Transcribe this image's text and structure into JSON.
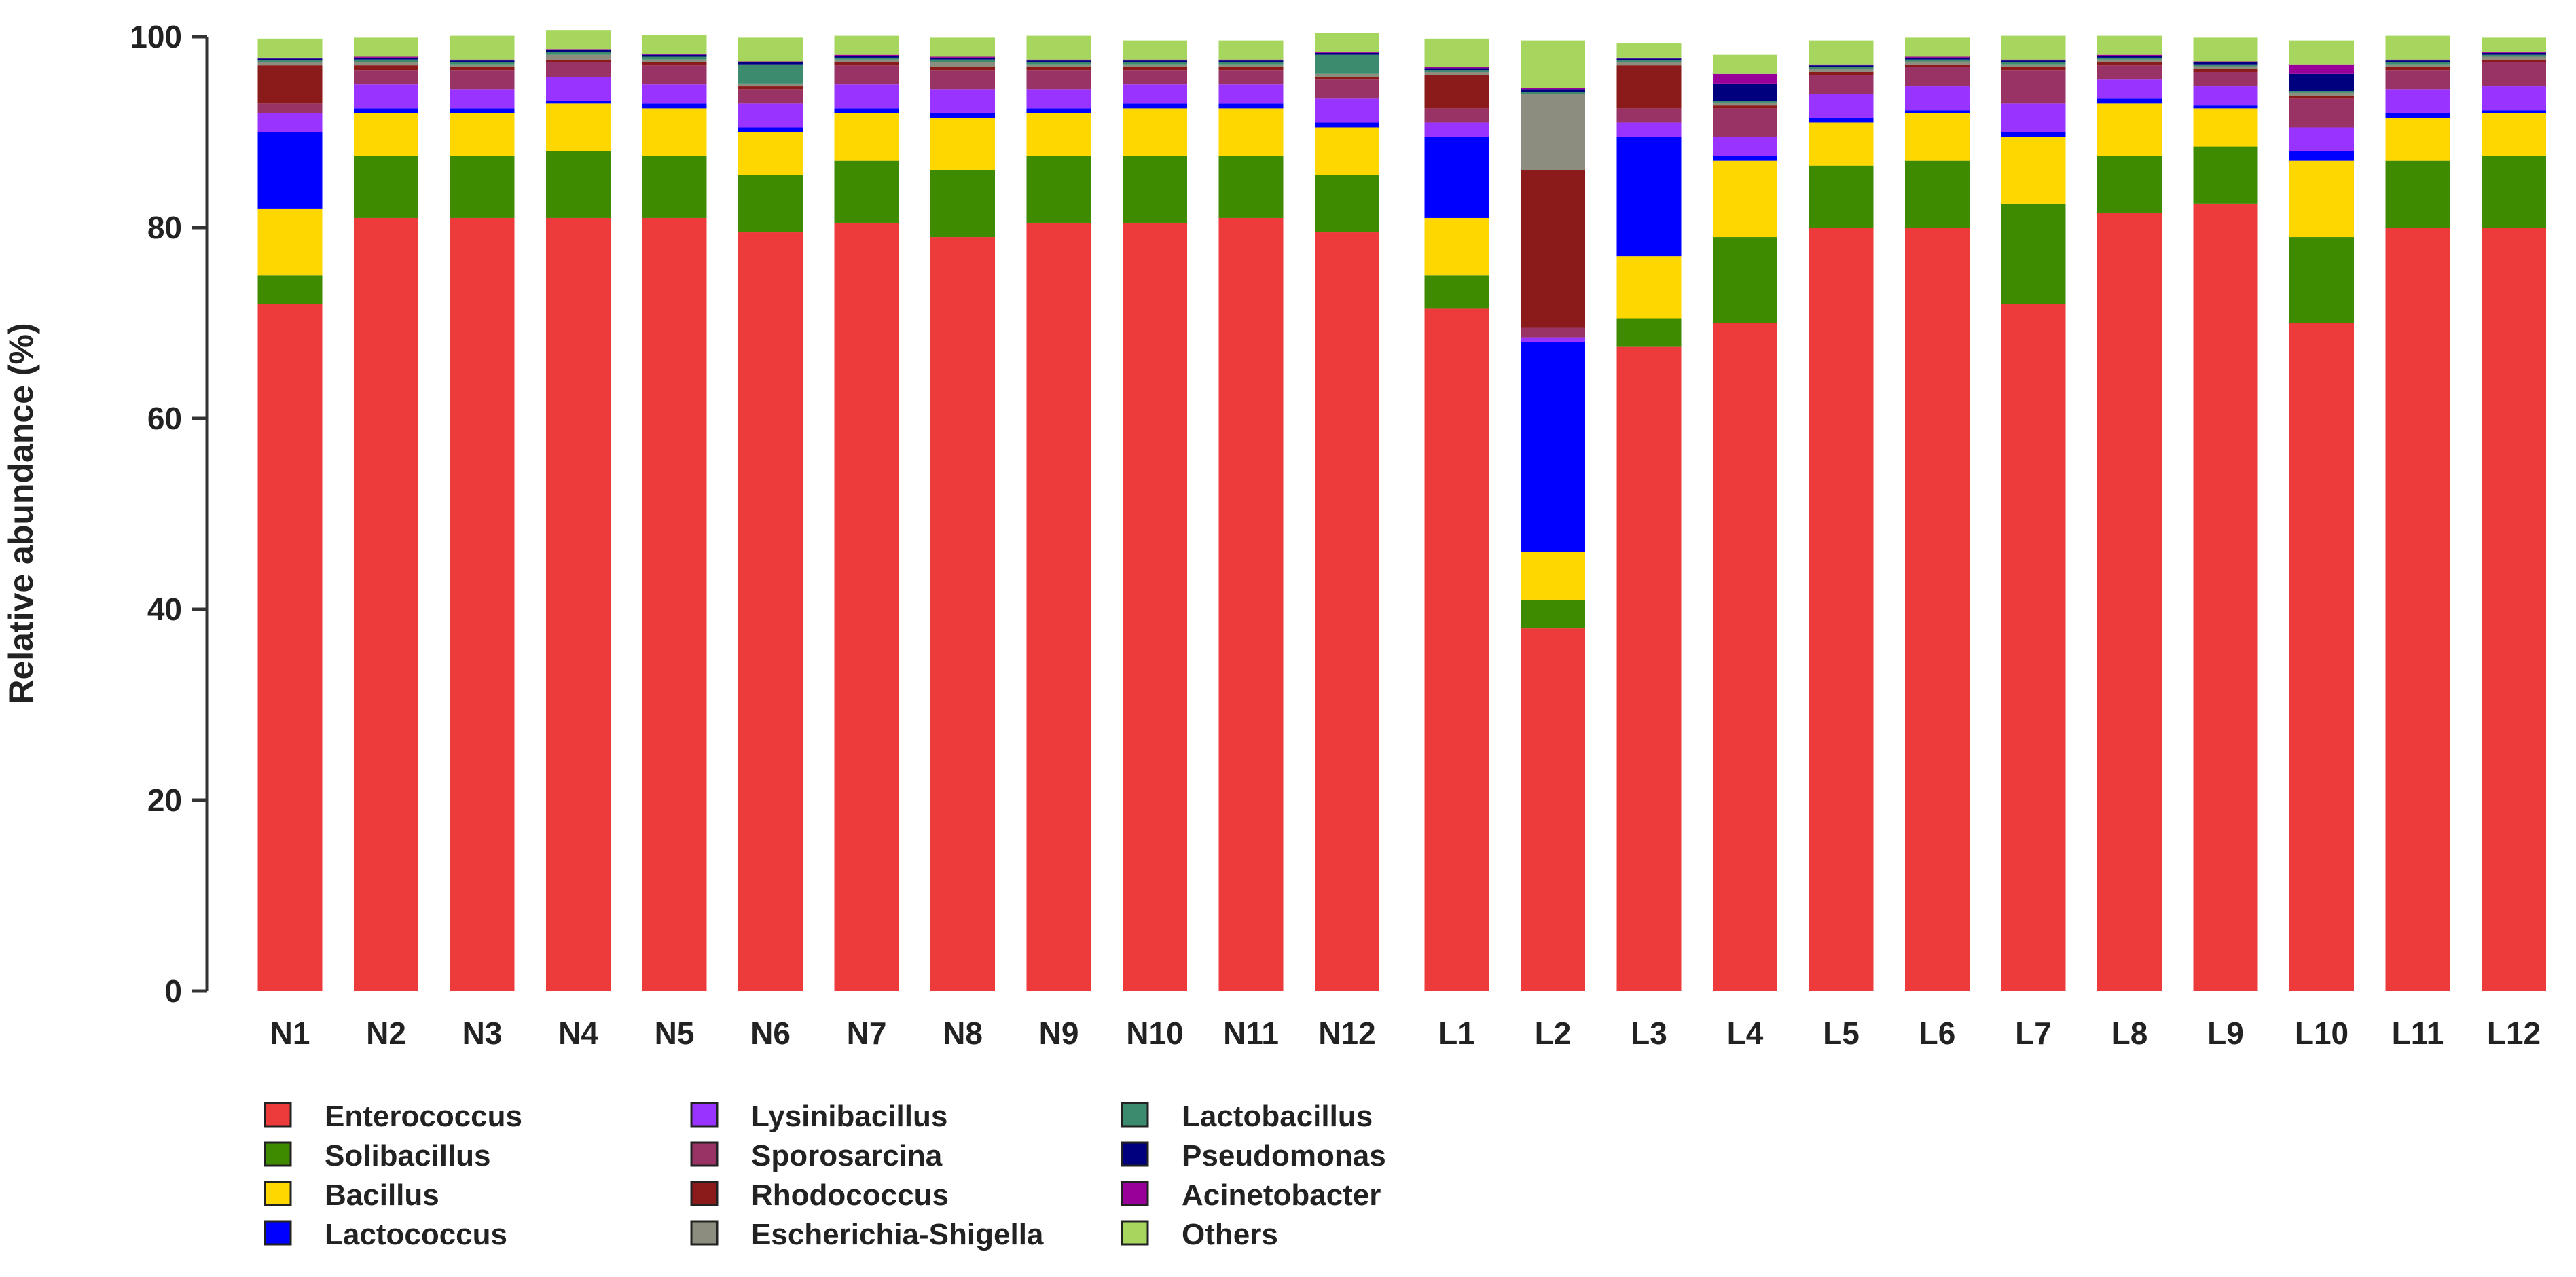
{
  "chart_data": {
    "type": "bar",
    "stacked": true,
    "title": "",
    "xlabel": "",
    "ylabel": "Relative abundance (%)",
    "ylim": [
      0,
      100
    ],
    "yticks": [
      0,
      20,
      40,
      60,
      80,
      100
    ],
    "grid": false,
    "legend_position": "bottom-left",
    "categories": [
      "N1",
      "N2",
      "N3",
      "N4",
      "N5",
      "N6",
      "N7",
      "N8",
      "N9",
      "N10",
      "N11",
      "N12",
      "L1",
      "L2",
      "L3",
      "L4",
      "L5",
      "L6",
      "L7",
      "L8",
      "L9",
      "L10",
      "L11",
      "L12"
    ],
    "series": [
      {
        "name": "Enterococcus",
        "color": "#ED3B3B",
        "values": [
          72.0,
          81.0,
          81.0,
          81.0,
          81.0,
          79.5,
          80.5,
          79.0,
          80.5,
          80.5,
          81.0,
          79.5,
          71.5,
          38.0,
          67.5,
          70.0,
          80.0,
          80.0,
          72.0,
          81.5,
          82.5,
          70.0,
          80.0,
          80.0
        ]
      },
      {
        "name": "Solibacillus",
        "color": "#3F8B00",
        "values": [
          3.0,
          6.5,
          6.5,
          7.0,
          6.5,
          6.0,
          6.5,
          7.0,
          7.0,
          7.0,
          6.5,
          6.0,
          3.5,
          3.0,
          3.0,
          9.0,
          6.5,
          7.0,
          10.5,
          6.0,
          6.0,
          9.0,
          7.0,
          7.5
        ]
      },
      {
        "name": "Bacillus",
        "color": "#FFD700",
        "values": [
          7.0,
          4.5,
          4.5,
          5.0,
          5.0,
          4.5,
          5.0,
          5.5,
          4.5,
          5.0,
          5.0,
          5.0,
          6.0,
          5.0,
          6.5,
          8.0,
          4.5,
          5.0,
          7.0,
          5.5,
          4.0,
          8.0,
          4.5,
          4.5
        ]
      },
      {
        "name": "Lactococcus",
        "color": "#0000FF",
        "values": [
          8.0,
          0.5,
          0.5,
          0.3,
          0.5,
          0.5,
          0.5,
          0.5,
          0.5,
          0.5,
          0.5,
          0.5,
          8.5,
          22.0,
          12.5,
          0.5,
          0.5,
          0.3,
          0.5,
          0.5,
          0.3,
          1.0,
          0.5,
          0.3
        ]
      },
      {
        "name": "Lysinibacillus",
        "color": "#9933FF",
        "values": [
          2.0,
          2.5,
          2.0,
          2.5,
          2.0,
          2.5,
          2.5,
          2.5,
          2.0,
          2.0,
          2.0,
          2.5,
          1.5,
          0.5,
          1.5,
          2.0,
          2.5,
          2.5,
          3.0,
          2.0,
          2.0,
          2.5,
          2.5,
          2.5
        ]
      },
      {
        "name": "Sporosarcina",
        "color": "#993366",
        "values": [
          1.0,
          1.5,
          2.0,
          1.5,
          2.0,
          1.5,
          2.0,
          2.0,
          2.0,
          1.5,
          1.5,
          2.0,
          1.5,
          1.0,
          1.5,
          3.0,
          2.0,
          2.0,
          3.5,
          1.5,
          1.5,
          3.0,
          2.0,
          2.5
        ]
      },
      {
        "name": "Rhodococcus",
        "color": "#8B1A1A",
        "values": [
          4.0,
          0.5,
          0.3,
          0.3,
          0.3,
          0.3,
          0.3,
          0.3,
          0.3,
          0.3,
          0.3,
          0.3,
          3.5,
          16.5,
          4.5,
          0.3,
          0.3,
          0.3,
          0.3,
          0.3,
          0.3,
          0.3,
          0.3,
          0.3
        ]
      },
      {
        "name": "Escherichia-Shigella",
        "color": "#8C8C7F",
        "values": [
          0.3,
          0.3,
          0.3,
          0.5,
          0.3,
          0.3,
          0.3,
          0.5,
          0.3,
          0.3,
          0.3,
          0.3,
          0.3,
          8.0,
          0.3,
          0.3,
          0.3,
          0.3,
          0.3,
          0.3,
          0.3,
          0.3,
          0.3,
          0.3
        ]
      },
      {
        "name": "Lactobacillus",
        "color": "#3D8B6E",
        "values": [
          0.2,
          0.3,
          0.2,
          0.3,
          0.3,
          2.0,
          0.2,
          0.3,
          0.2,
          0.2,
          0.2,
          2.0,
          0.2,
          0.2,
          0.2,
          0.2,
          0.2,
          0.2,
          0.2,
          0.2,
          0.2,
          0.2,
          0.2,
          0.2
        ]
      },
      {
        "name": "Pseudomonas",
        "color": "#00007F",
        "values": [
          0.2,
          0.2,
          0.2,
          0.2,
          0.2,
          0.2,
          0.2,
          0.2,
          0.2,
          0.2,
          0.2,
          0.2,
          0.2,
          0.3,
          0.2,
          1.8,
          0.2,
          0.2,
          0.2,
          0.2,
          0.2,
          1.8,
          0.2,
          0.2
        ]
      },
      {
        "name": "Acinetobacter",
        "color": "#990099",
        "values": [
          0.1,
          0.1,
          0.1,
          0.1,
          0.1,
          0.1,
          0.1,
          0.1,
          0.1,
          0.1,
          0.1,
          0.1,
          0.1,
          0.1,
          0.1,
          1.0,
          0.1,
          0.1,
          0.1,
          0.1,
          0.1,
          1.0,
          0.1,
          0.1
        ]
      },
      {
        "name": "Others",
        "color": "#A6D65E",
        "values": [
          2.0,
          2.0,
          2.5,
          2.0,
          2.0,
          2.5,
          2.0,
          2.0,
          2.5,
          2.0,
          2.0,
          2.0,
          3.0,
          5.0,
          1.5,
          2.0,
          2.5,
          2.0,
          2.5,
          2.0,
          2.5,
          2.5,
          2.5,
          1.5
        ]
      }
    ]
  }
}
